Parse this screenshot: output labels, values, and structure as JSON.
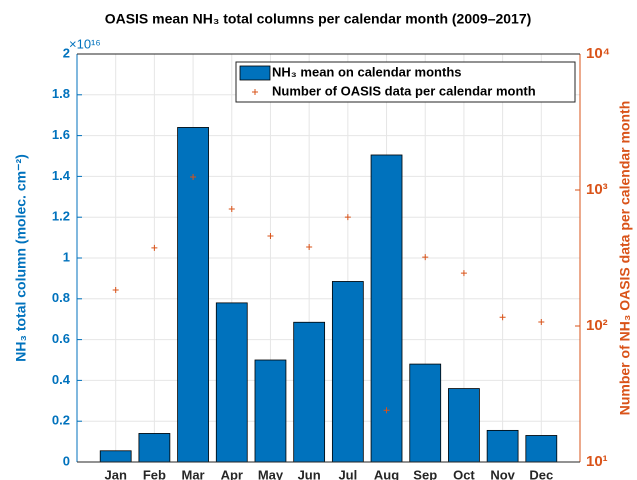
{
  "chart_data": {
    "type": "bar",
    "title": "OASIS mean NH₃ total columns per calendar month (2009–2017)",
    "y_label": "NH₃ total column (molec. cm⁻²)",
    "y2_label": "Number of NH₃ OASIS data per calendar month",
    "y_multiplier": "×10¹⁶",
    "categories": [
      "Jan",
      "Feb",
      "Mar",
      "Apr",
      "May",
      "Jun",
      "Jul",
      "Aug",
      "Sep",
      "Oct",
      "Nov",
      "Dec"
    ],
    "series": [
      {
        "name": "NH₃ mean on calendar months",
        "type": "bar",
        "color": "#0072bd",
        "values": [
          0.055,
          0.14,
          1.64,
          0.78,
          0.5,
          0.685,
          0.885,
          1.505,
          0.48,
          0.36,
          0.155,
          0.13
        ]
      },
      {
        "name": "Number of OASIS data per calendar month",
        "type": "scatter",
        "axis": "y2",
        "color": "#d95319",
        "values": [
          184,
          375,
          1247,
          725,
          459,
          381,
          632,
          24,
          321,
          245,
          116,
          107
        ]
      }
    ],
    "ylim": [
      0,
      2
    ],
    "yticks": [
      0,
      0.2,
      0.4,
      0.6,
      0.8,
      1,
      1.2,
      1.4,
      1.6,
      1.8,
      2
    ],
    "y2lim": [
      10,
      10000
    ],
    "y2scale": "log",
    "y2ticks": [
      {
        "value": 10,
        "label": "10¹"
      },
      {
        "value": 100,
        "label": "10²"
      },
      {
        "value": 1000,
        "label": "10³"
      },
      {
        "value": 10000,
        "label": "10⁴"
      }
    ],
    "grid": true,
    "legend": "upper right"
  }
}
